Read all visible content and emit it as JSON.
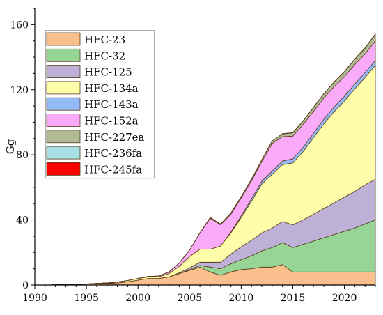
{
  "chart_data": {
    "type": "area",
    "stacked": true,
    "ylabel": "Gg",
    "xlim": [
      1990,
      2023
    ],
    "ylim": [
      0,
      170
    ],
    "x_ticks": [
      1990,
      1995,
      2000,
      2005,
      2010,
      2015,
      2020
    ],
    "y_ticks": [
      0,
      40,
      80,
      120,
      160
    ],
    "legend_position": "top-left",
    "grid": false,
    "x": [
      1990,
      1991,
      1992,
      1993,
      1994,
      1995,
      1996,
      1997,
      1998,
      1999,
      2000,
      2001,
      2002,
      2003,
      2004,
      2005,
      2006,
      2007,
      2008,
      2009,
      2010,
      2011,
      2012,
      2013,
      2014,
      2015,
      2016,
      2017,
      2018,
      2019,
      2020,
      2021,
      2022,
      2023
    ],
    "series": [
      {
        "name": "HFC-23",
        "color": "#F9C08E",
        "values": [
          0,
          0,
          0.1,
          0.2,
          0.4,
          0.6,
          0.8,
          1.0,
          1.3,
          2.0,
          3.0,
          4.0,
          4.0,
          5.0,
          7.0,
          9.0,
          11.0,
          8.0,
          6.0,
          8.0,
          9.5,
          10.0,
          11.0,
          11.0,
          12.5,
          8.0,
          8.0,
          8.0,
          8.0,
          8.0,
          8.0,
          8.0,
          8.0,
          8.0
        ]
      },
      {
        "name": "HFC-32",
        "color": "#96D596",
        "values": [
          0,
          0,
          0,
          0,
          0,
          0,
          0,
          0,
          0,
          0,
          0,
          0,
          0,
          0,
          0,
          0.5,
          1.0,
          3.0,
          4.0,
          5.0,
          6.0,
          8.0,
          10.0,
          12.0,
          13.5,
          15.0,
          17.0,
          19.0,
          21.0,
          23.0,
          25.0,
          27.0,
          29.5,
          32.0
        ]
      },
      {
        "name": "HFC-125",
        "color": "#BDB1D8",
        "values": [
          0,
          0,
          0,
          0,
          0,
          0,
          0,
          0,
          0,
          0,
          0,
          0,
          0,
          0,
          0.5,
          1.0,
          2.0,
          3.0,
          4.0,
          6.0,
          8.0,
          9.5,
          11.0,
          12.0,
          13.0,
          14.0,
          15.0,
          16.5,
          18.0,
          19.5,
          21.0,
          22.5,
          24.0,
          25.0
        ]
      },
      {
        "name": "HFC-134a",
        "color": "#FEFEAA",
        "values": [
          0,
          0,
          0,
          0,
          0,
          0,
          0.2,
          0.3,
          0.5,
          0.8,
          1.0,
          1.0,
          1.0,
          2.0,
          4.0,
          7.0,
          8.0,
          8.0,
          10.0,
          13.0,
          18.0,
          24.0,
          30.0,
          33.0,
          35.0,
          38.0,
          42.0,
          47.0,
          52.0,
          56.0,
          59.0,
          63.0,
          66.0,
          70.0
        ]
      },
      {
        "name": "HFC-143a",
        "color": "#93B9F6",
        "values": [
          0,
          0,
          0,
          0,
          0,
          0,
          0,
          0,
          0,
          0,
          0,
          0,
          0,
          0,
          0,
          0,
          0,
          0,
          0,
          0.5,
          1.0,
          1.5,
          1.8,
          2.0,
          2.2,
          2.5,
          2.6,
          2.7,
          2.8,
          2.9,
          3.0,
          3.0,
          3.0,
          3.0
        ]
      },
      {
        "name": "HFC-152a",
        "color": "#F9AAF8",
        "values": [
          0,
          0,
          0,
          0,
          0,
          0,
          0,
          0,
          0,
          0,
          0,
          0.3,
          0.5,
          1.0,
          2.0,
          4.0,
          10.0,
          19.0,
          13.0,
          11.0,
          11.0,
          11.0,
          12.0,
          17.0,
          15.0,
          14.0,
          14.0,
          13.5,
          13.0,
          12.5,
          12.0,
          12.0,
          11.5,
          12.0
        ]
      },
      {
        "name": "HFC-227ea",
        "color": "#AFB995",
        "values": [
          0,
          0,
          0,
          0,
          0,
          0,
          0,
          0,
          0,
          0,
          0,
          0,
          0,
          0,
          0,
          0,
          0,
          0.5,
          0.5,
          0.7,
          0.8,
          1.0,
          1.2,
          1.5,
          1.7,
          2.0,
          2.2,
          2.4,
          2.6,
          2.8,
          3.0,
          3.2,
          3.5,
          4.0
        ]
      },
      {
        "name": "HFC-236fa",
        "color": "#A8E0E6",
        "values": [
          0,
          0,
          0,
          0,
          0,
          0,
          0,
          0,
          0,
          0,
          0,
          0,
          0,
          0,
          0,
          0,
          0,
          0,
          0,
          0,
          0,
          0,
          0,
          0,
          0.1,
          0.1,
          0.1,
          0.1,
          0.1,
          0.1,
          0.1,
          0.1,
          0.1,
          0.1
        ]
      },
      {
        "name": "HFC-245fa",
        "color": "#FF0000",
        "values": [
          0,
          0,
          0,
          0,
          0,
          0,
          0,
          0,
          0,
          0,
          0,
          0,
          0,
          0,
          0,
          0,
          0,
          0,
          0,
          0,
          0,
          0,
          0,
          0,
          0,
          0,
          0,
          0,
          0,
          0,
          0.1,
          0.1,
          0.2,
          0.2
        ]
      }
    ]
  }
}
